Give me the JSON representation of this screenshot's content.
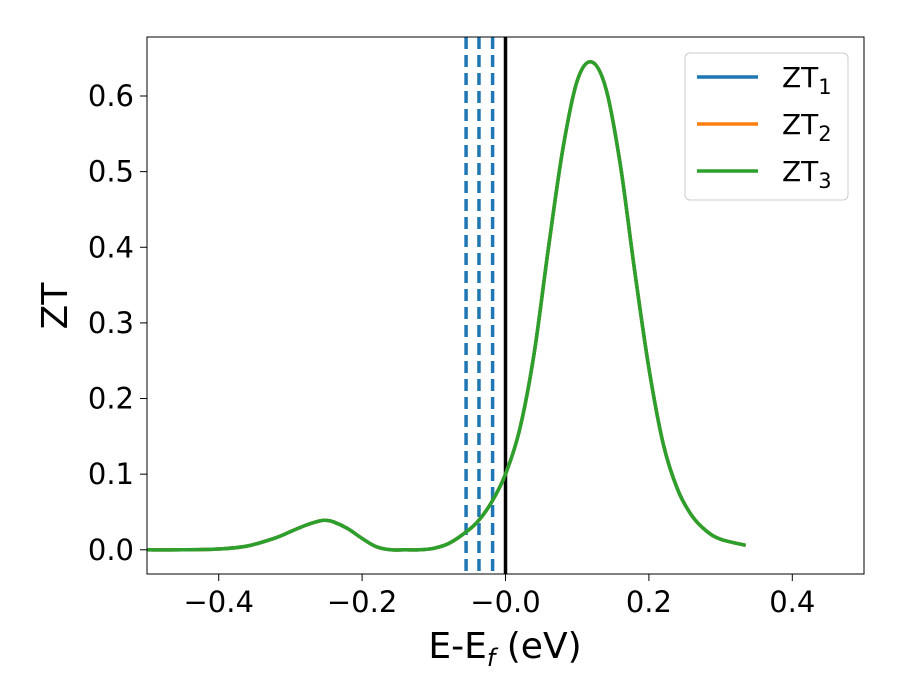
{
  "chart_data": {
    "type": "line",
    "xlabel": "E-E",
    "xlabel_sub": "f",
    "xlabel_unit": " (eV)",
    "ylabel": "ZT",
    "xlim": [
      -0.5,
      0.5
    ],
    "ylim": [
      -0.032,
      0.678
    ],
    "x_ticks": [
      -0.4,
      -0.2,
      0.0,
      0.2,
      0.4
    ],
    "x_tick_labels": [
      "−0.4",
      "−0.2",
      "−0.0",
      "0.2",
      "0.4"
    ],
    "y_ticks": [
      0.0,
      0.1,
      0.2,
      0.3,
      0.4,
      0.5,
      0.6
    ],
    "y_tick_labels": [
      "0.0",
      "0.1",
      "0.2",
      "0.3",
      "0.4",
      "0.5",
      "0.6"
    ],
    "grid": false,
    "legend_position": "top-right",
    "vertical_lines": [
      {
        "x": -0.055,
        "style": "dashed",
        "color": "#1f77b4"
      },
      {
        "x": -0.037,
        "style": "dashed",
        "color": "#1f77b4"
      },
      {
        "x": -0.018,
        "style": "dashed",
        "color": "#1f77b4"
      },
      {
        "x": 0.0,
        "style": "solid",
        "color": "#000000"
      }
    ],
    "x": [
      -0.5,
      -0.45,
      -0.4,
      -0.36,
      -0.32,
      -0.3,
      -0.28,
      -0.26,
      -0.25,
      -0.24,
      -0.22,
      -0.2,
      -0.18,
      -0.16,
      -0.14,
      -0.12,
      -0.1,
      -0.08,
      -0.06,
      -0.04,
      -0.02,
      0.0,
      0.02,
      0.04,
      0.06,
      0.08,
      0.1,
      0.12,
      0.14,
      0.16,
      0.18,
      0.2,
      0.22,
      0.24,
      0.26,
      0.28,
      0.3,
      0.335
    ],
    "series": [
      {
        "name": "ZT",
        "name_sub": "1",
        "color": "#1f77b4",
        "values": [
          0.0,
          0.0,
          0.001,
          0.005,
          0.016,
          0.024,
          0.032,
          0.038,
          0.039,
          0.037,
          0.028,
          0.015,
          0.004,
          0.0,
          0.0,
          0.0,
          0.002,
          0.008,
          0.02,
          0.036,
          0.062,
          0.1,
          0.16,
          0.26,
          0.4,
          0.53,
          0.62,
          0.645,
          0.61,
          0.51,
          0.37,
          0.24,
          0.14,
          0.08,
          0.045,
          0.025,
          0.014,
          0.006
        ]
      },
      {
        "name": "ZT",
        "name_sub": "2",
        "color": "#ff7f0e",
        "values": [
          0.0,
          0.0,
          0.001,
          0.005,
          0.016,
          0.024,
          0.032,
          0.038,
          0.039,
          0.037,
          0.028,
          0.015,
          0.004,
          0.0,
          0.0,
          0.0,
          0.002,
          0.008,
          0.02,
          0.036,
          0.062,
          0.1,
          0.16,
          0.26,
          0.4,
          0.53,
          0.62,
          0.645,
          0.61,
          0.51,
          0.37,
          0.24,
          0.14,
          0.08,
          0.045,
          0.025,
          0.014,
          0.006
        ]
      },
      {
        "name": "ZT",
        "name_sub": "3",
        "color": "#2ca02c",
        "values": [
          0.0,
          0.0,
          0.001,
          0.005,
          0.016,
          0.024,
          0.032,
          0.038,
          0.039,
          0.037,
          0.028,
          0.015,
          0.004,
          0.0,
          0.0,
          0.0,
          0.002,
          0.008,
          0.02,
          0.036,
          0.062,
          0.1,
          0.16,
          0.26,
          0.4,
          0.53,
          0.62,
          0.645,
          0.61,
          0.51,
          0.37,
          0.24,
          0.14,
          0.08,
          0.045,
          0.025,
          0.014,
          0.006
        ]
      }
    ]
  }
}
